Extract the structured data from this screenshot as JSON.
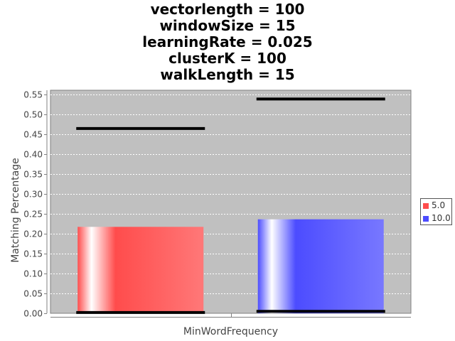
{
  "title_lines": [
    "vectorlength = 100",
    "windowSize = 15",
    "learningRate = 0.025",
    "clusterK = 100",
    "walkLength = 15"
  ],
  "chart_data": {
    "type": "bar",
    "title": "vectorlength = 100\nwindowSize = 15\nlearningRate = 0.025\nclusterK = 100\nwalkLength = 15",
    "xlabel": "MinWordFrequency",
    "ylabel": "Matching Percentage",
    "categories": [
      ""
    ],
    "series": [
      {
        "name": "5.0",
        "color": "#ff4c4c",
        "values": [
          0.217
        ],
        "max": 0.464,
        "min": 0.002
      },
      {
        "name": "10.0",
        "color": "#4c4cff",
        "values": [
          0.236
        ],
        "max": 0.538,
        "min": 0.005
      }
    ],
    "ylim": [
      0,
      0.56
    ],
    "yticks": [
      0,
      0.05,
      0.1,
      0.15,
      0.2,
      0.25,
      0.3,
      0.35,
      0.4,
      0.45,
      0.5,
      0.55
    ],
    "ytick_labels": [
      "0.00",
      "0.05",
      "0.10",
      "0.15",
      "0.20",
      "0.25",
      "0.30",
      "0.35",
      "0.40",
      "0.45",
      "0.50",
      "0.55"
    ],
    "grid": true,
    "legend_position": "right",
    "plot_background": "#c0c0c0"
  }
}
